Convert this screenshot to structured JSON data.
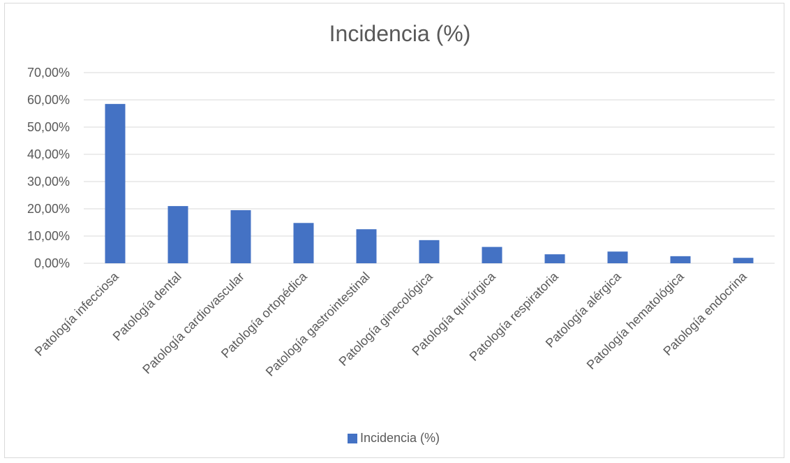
{
  "chart_data": {
    "type": "bar",
    "title": "Incidencia (%)",
    "xlabel": "",
    "ylabel": "",
    "ylim": [
      0,
      70
    ],
    "y_ticks": [
      "0,00%",
      "10,00%",
      "20,00%",
      "30,00%",
      "40,00%",
      "50,00%",
      "60,00%",
      "70,00%"
    ],
    "categories": [
      "Patología infecciosa",
      "Patología dental",
      "Patología cardiovascular",
      "Patología ortopédica",
      "Patología gastrointestinal",
      "Patología ginecológica",
      "Patología quirúrgica",
      "Patología respiratoria",
      "Patología alérgica",
      "Patología hematológica",
      "Patología endocrina"
    ],
    "series": [
      {
        "name": "Incidencia (%)",
        "values": [
          58.5,
          21.0,
          19.5,
          14.8,
          12.5,
          8.5,
          6.0,
          3.3,
          4.3,
          2.6,
          2.0
        ]
      }
    ],
    "grid": true,
    "legend_position": "bottom",
    "colors": {
      "bar": "#4472c4",
      "grid": "#d9d9d9",
      "text": "#595959"
    }
  }
}
